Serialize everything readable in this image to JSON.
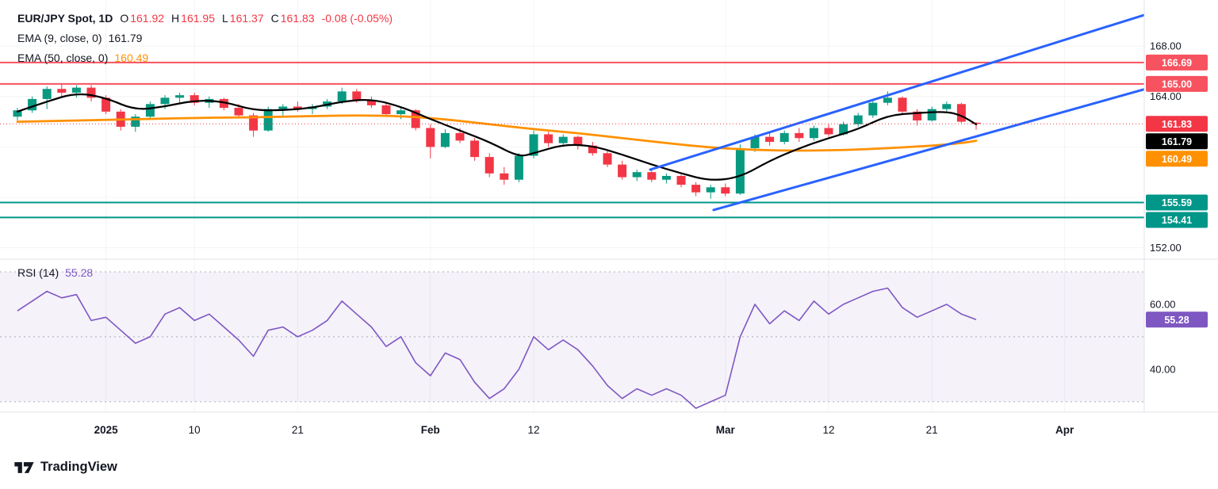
{
  "header": {
    "title": "EUR/JPY Spot, 1D",
    "ohlc": [
      {
        "label": "O",
        "value": "161.92"
      },
      {
        "label": "H",
        "value": "161.95"
      },
      {
        "label": "L",
        "value": "161.37"
      },
      {
        "label": "C",
        "value": "161.83"
      }
    ],
    "change": "-0.08 (-0.05%)",
    "indicators": [
      {
        "label": "EMA (9, close, 0)",
        "value": "161.79"
      },
      {
        "label": "EMA (50, close, 0)",
        "value": "160.49"
      }
    ]
  },
  "rsi_header": {
    "label": "RSI (14)",
    "value": "55.28"
  },
  "footer": {
    "brand": "TradingView",
    "logo_icon": "tradingview-logo"
  },
  "chart_data": {
    "type": "candlestick",
    "symbol": "EUR/JPY Spot",
    "timeframe": "1D",
    "colors": {
      "up": "#089981",
      "down": "#f23645"
    },
    "price_axis": {
      "visible_range": [
        151.1,
        171.65
      ],
      "ticks": [
        {
          "label": "168.00",
          "price": 168.0
        },
        {
          "label": "164.00",
          "price": 164.0
        },
        {
          "label": "152.00",
          "price": 152.0
        }
      ],
      "badges": [
        {
          "label": "166.69",
          "price": 166.69,
          "bg": "#f7525f",
          "role": "resistance"
        },
        {
          "label": "165.00",
          "price": 165.0,
          "bg": "#f7525f",
          "role": "resistance"
        },
        {
          "label": "161.83",
          "price": 161.83,
          "bg": "#f23645",
          "role": "last-price"
        },
        {
          "label": "161.79",
          "price": 161.79,
          "bg": "#000000",
          "role": "ema9"
        },
        {
          "label": "160.49",
          "price": 160.49,
          "bg": "#ff9100",
          "role": "ema50"
        },
        {
          "label": "155.59",
          "price": 155.59,
          "bg": "#009688",
          "role": "support"
        },
        {
          "label": "154.41",
          "price": 154.41,
          "bg": "#009688",
          "role": "support"
        }
      ]
    },
    "grid_prices": [
      168,
      164,
      160,
      156,
      152
    ],
    "levels": [
      {
        "price": 166.69,
        "color": "#f7525f",
        "label": "166.69"
      },
      {
        "price": 165.0,
        "color": "#f7525f",
        "label": "165.00"
      },
      {
        "price": 155.59,
        "color": "#009688",
        "label": "155.59"
      },
      {
        "price": 154.41,
        "color": "#009688",
        "label": "154.41"
      }
    ],
    "last_price": {
      "value": 161.83,
      "label": "161.83",
      "color": "#f23645"
    },
    "candles": [
      [
        162.4,
        163.1,
        162.1,
        162.9
      ],
      [
        162.9,
        164.0,
        162.7,
        163.8
      ],
      [
        163.8,
        164.8,
        163.0,
        164.6
      ],
      [
        164.6,
        164.95,
        164.0,
        164.3
      ],
      [
        164.3,
        164.9,
        163.9,
        164.7
      ],
      [
        164.7,
        164.9,
        163.6,
        163.9
      ],
      [
        163.9,
        164.1,
        162.6,
        162.8
      ],
      [
        162.8,
        163.0,
        161.3,
        161.6
      ],
      [
        161.6,
        162.6,
        161.2,
        162.4
      ],
      [
        162.4,
        163.6,
        162.2,
        163.4
      ],
      [
        163.4,
        164.1,
        163.0,
        163.9
      ],
      [
        163.9,
        164.3,
        163.4,
        164.1
      ],
      [
        164.1,
        164.3,
        163.3,
        163.5
      ],
      [
        163.5,
        164.0,
        163.1,
        163.8
      ],
      [
        163.8,
        163.9,
        162.9,
        163.1
      ],
      [
        163.1,
        163.4,
        162.3,
        162.5
      ],
      [
        162.5,
        162.7,
        160.8,
        161.3
      ],
      [
        161.3,
        163.2,
        161.2,
        163.0
      ],
      [
        163.0,
        163.4,
        162.5,
        163.2
      ],
      [
        163.2,
        163.6,
        162.8,
        163.0
      ],
      [
        163.0,
        163.4,
        162.6,
        163.2
      ],
      [
        163.2,
        163.8,
        163.0,
        163.6
      ],
      [
        163.6,
        164.7,
        163.4,
        164.4
      ],
      [
        164.4,
        164.6,
        163.5,
        163.7
      ],
      [
        163.7,
        164.0,
        163.1,
        163.3
      ],
      [
        163.3,
        163.5,
        162.4,
        162.6
      ],
      [
        162.6,
        163.1,
        162.2,
        162.9
      ],
      [
        162.9,
        163.0,
        161.3,
        161.5
      ],
      [
        161.5,
        161.8,
        159.1,
        160.0
      ],
      [
        160.0,
        161.4,
        159.9,
        161.1
      ],
      [
        161.1,
        161.5,
        160.3,
        160.5
      ],
      [
        160.5,
        160.7,
        158.9,
        159.2
      ],
      [
        159.2,
        159.5,
        157.6,
        157.9
      ],
      [
        157.9,
        158.4,
        157.0,
        157.4
      ],
      [
        157.4,
        159.5,
        157.2,
        159.3
      ],
      [
        159.3,
        161.3,
        159.1,
        161.0
      ],
      [
        161.0,
        161.2,
        160.0,
        160.3
      ],
      [
        160.3,
        161.0,
        160.0,
        160.8
      ],
      [
        160.8,
        160.9,
        159.8,
        160.1
      ],
      [
        160.1,
        160.4,
        159.3,
        159.5
      ],
      [
        159.5,
        159.7,
        158.4,
        158.6
      ],
      [
        158.6,
        158.9,
        157.4,
        157.6
      ],
      [
        157.6,
        158.2,
        157.3,
        158.0
      ],
      [
        158.0,
        158.2,
        157.2,
        157.4
      ],
      [
        157.4,
        157.9,
        157.1,
        157.7
      ],
      [
        157.7,
        157.8,
        156.8,
        157.0
      ],
      [
        157.0,
        157.2,
        156.1,
        156.4
      ],
      [
        156.4,
        157.0,
        155.9,
        156.8
      ],
      [
        156.8,
        157.1,
        156.1,
        156.3
      ],
      [
        156.3,
        160.2,
        156.2,
        159.9
      ],
      [
        159.9,
        161.0,
        159.6,
        160.8
      ],
      [
        160.8,
        161.2,
        160.1,
        160.4
      ],
      [
        160.4,
        161.3,
        160.2,
        161.1
      ],
      [
        161.1,
        161.5,
        160.4,
        160.7
      ],
      [
        160.7,
        161.7,
        160.5,
        161.5
      ],
      [
        161.5,
        161.8,
        160.8,
        161.0
      ],
      [
        161.0,
        162.0,
        160.9,
        161.8
      ],
      [
        161.8,
        162.7,
        161.6,
        162.5
      ],
      [
        162.5,
        163.7,
        162.3,
        163.5
      ],
      [
        163.5,
        164.4,
        163.3,
        163.9
      ],
      [
        163.9,
        164.0,
        162.6,
        162.8
      ],
      [
        162.8,
        163.0,
        161.7,
        162.1
      ],
      [
        162.1,
        163.2,
        162.0,
        163.0
      ],
      [
        163.0,
        163.6,
        162.8,
        163.4
      ],
      [
        163.4,
        163.5,
        161.9,
        162.0
      ],
      [
        161.92,
        161.95,
        161.37,
        161.83
      ]
    ],
    "ema9": {
      "period": 9,
      "color": "#000000",
      "last": 161.79,
      "points": [
        [
          0,
          162.8
        ],
        [
          2,
          163.6
        ],
        [
          4,
          164.3
        ],
        [
          6,
          163.9
        ],
        [
          8,
          162.9
        ],
        [
          10,
          163.2
        ],
        [
          12,
          163.7
        ],
        [
          14,
          163.6
        ],
        [
          16,
          162.9
        ],
        [
          18,
          162.9
        ],
        [
          20,
          163.1
        ],
        [
          22,
          163.6
        ],
        [
          24,
          163.8
        ],
        [
          26,
          163.2
        ],
        [
          28,
          162.2
        ],
        [
          30,
          161.3
        ],
        [
          32,
          160.4
        ],
        [
          34,
          159.2
        ],
        [
          35,
          159.5
        ],
        [
          37,
          160.2
        ],
        [
          39,
          160.1
        ],
        [
          41,
          159.4
        ],
        [
          43,
          158.6
        ],
        [
          45,
          157.9
        ],
        [
          47,
          157.3
        ],
        [
          49,
          157.6
        ],
        [
          51,
          158.9
        ],
        [
          53,
          159.9
        ],
        [
          55,
          160.7
        ],
        [
          57,
          161.4
        ],
        [
          59,
          162.5
        ],
        [
          61,
          162.7
        ],
        [
          63,
          162.8
        ],
        [
          64,
          162.5
        ],
        [
          65,
          161.79
        ]
      ]
    },
    "ema50": {
      "period": 50,
      "color": "#ff9100",
      "last": 160.49,
      "points": [
        [
          0,
          162.0
        ],
        [
          4,
          162.1
        ],
        [
          8,
          162.2
        ],
        [
          12,
          162.3
        ],
        [
          16,
          162.35
        ],
        [
          20,
          162.45
        ],
        [
          23,
          162.5
        ],
        [
          26,
          162.45
        ],
        [
          29,
          162.2
        ],
        [
          32,
          161.8
        ],
        [
          35,
          161.4
        ],
        [
          38,
          161.1
        ],
        [
          41,
          160.7
        ],
        [
          44,
          160.3
        ],
        [
          47,
          159.95
        ],
        [
          50,
          159.75
        ],
        [
          53,
          159.7
        ],
        [
          56,
          159.75
        ],
        [
          59,
          159.9
        ],
        [
          62,
          160.1
        ],
        [
          64,
          160.3
        ],
        [
          65,
          160.49
        ]
      ]
    },
    "channel": {
      "color": "#2962ff",
      "width": 3,
      "lines": [
        [
          [
            42.9,
            158.2
          ],
          [
            76.5,
            170.5
          ]
        ],
        [
          [
            47.2,
            155.0
          ],
          [
            76.5,
            164.6
          ]
        ]
      ]
    },
    "rsi": {
      "period": 14,
      "color": "#7e57c2",
      "visible_range": [
        26.8,
        73.9
      ],
      "band": [
        30,
        70
      ],
      "dashed_levels": [
        70,
        50,
        30
      ],
      "ticks": [
        {
          "label": "60.00",
          "value": 60
        },
        {
          "label": "40.00",
          "value": 40
        }
      ],
      "badge": {
        "label": "55.28",
        "value": 55.28
      },
      "values": [
        58,
        61,
        64,
        62,
        63,
        55,
        56,
        52,
        48,
        50,
        57,
        59,
        55,
        57,
        53,
        49,
        44,
        52,
        53,
        50,
        52,
        55,
        61,
        57,
        53,
        47,
        50,
        42,
        38,
        45,
        43,
        36,
        31,
        34,
        40,
        50,
        46,
        49,
        46,
        41,
        35,
        31,
        34,
        32,
        34,
        32,
        28,
        30,
        32,
        50,
        60,
        54,
        58,
        55,
        61,
        57,
        60,
        62,
        64,
        65,
        59,
        56,
        58,
        60,
        57,
        55.28
      ]
    },
    "time_labels": [
      {
        "text": "2025",
        "bar": 6,
        "bold": true
      },
      {
        "text": "10",
        "bar": 12,
        "bold": false
      },
      {
        "text": "21",
        "bar": 19,
        "bold": false
      },
      {
        "text": "Feb",
        "bar": 28,
        "bold": true
      },
      {
        "text": "12",
        "bar": 35,
        "bold": false
      },
      {
        "text": "Mar",
        "bar": 48,
        "bold": true
      },
      {
        "text": "12",
        "bar": 55,
        "bold": false
      },
      {
        "text": "21",
        "bar": 62,
        "bold": false
      },
      {
        "text": "Apr",
        "bar": 71,
        "bold": true
      }
    ]
  }
}
